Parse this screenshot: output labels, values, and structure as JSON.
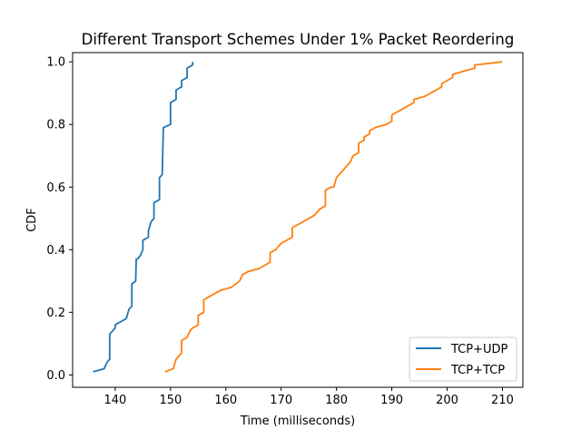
{
  "chart_data": {
    "type": "line",
    "title": "Different Transport Schemes Under 1% Packet Reordering",
    "xlabel": "Time (milliseconds)",
    "ylabel": "CDF",
    "xlim": [
      132.3,
      213.7
    ],
    "ylim": [
      -0.0395,
      1.0295
    ],
    "xticks": [
      140,
      150,
      160,
      170,
      180,
      190,
      200,
      210
    ],
    "yticks": [
      0.0,
      0.2,
      0.4,
      0.6,
      0.8,
      1.0
    ],
    "xtick_labels": [
      "140",
      "150",
      "160",
      "170",
      "180",
      "190",
      "200",
      "210"
    ],
    "ytick_labels": [
      "0.0",
      "0.2",
      "0.4",
      "0.6",
      "0.8",
      "1.0"
    ],
    "grid": false,
    "legend_position": "lower-right",
    "series": [
      {
        "name": "TCP+UDP",
        "color": "#1f77b4",
        "points": [
          [
            136.0,
            0.01
          ],
          [
            138.0,
            0.02
          ],
          [
            138.5,
            0.04
          ],
          [
            139.0,
            0.05
          ],
          [
            139.0,
            0.13
          ],
          [
            139.5,
            0.14
          ],
          [
            140.0,
            0.15
          ],
          [
            140.0,
            0.16
          ],
          [
            141.0,
            0.17
          ],
          [
            142.0,
            0.18
          ],
          [
            142.5,
            0.21
          ],
          [
            143.0,
            0.22
          ],
          [
            143.0,
            0.29
          ],
          [
            143.7,
            0.3
          ],
          [
            143.8,
            0.37
          ],
          [
            144.0,
            0.37
          ],
          [
            144.5,
            0.38
          ],
          [
            145.0,
            0.4
          ],
          [
            145.0,
            0.43
          ],
          [
            146.0,
            0.44
          ],
          [
            146.0,
            0.46
          ],
          [
            146.5,
            0.49
          ],
          [
            147.0,
            0.5
          ],
          [
            147.0,
            0.55
          ],
          [
            148.0,
            0.56
          ],
          [
            148.0,
            0.63
          ],
          [
            148.5,
            0.64
          ],
          [
            148.7,
            0.79
          ],
          [
            150.0,
            0.8
          ],
          [
            150.0,
            0.87
          ],
          [
            151.0,
            0.88
          ],
          [
            151.0,
            0.91
          ],
          [
            152.0,
            0.92
          ],
          [
            152.0,
            0.94
          ],
          [
            153.0,
            0.95
          ],
          [
            153.0,
            0.98
          ],
          [
            154.0,
            0.99
          ],
          [
            154.0,
            1.0
          ]
        ]
      },
      {
        "name": "TCP+TCP",
        "color": "#ff7f0e",
        "points": [
          [
            149.0,
            0.01
          ],
          [
            150.5,
            0.02
          ],
          [
            151.0,
            0.05
          ],
          [
            151.5,
            0.06
          ],
          [
            152.0,
            0.07
          ],
          [
            152.0,
            0.11
          ],
          [
            153.0,
            0.12
          ],
          [
            153.5,
            0.14
          ],
          [
            154.0,
            0.15
          ],
          [
            155.0,
            0.16
          ],
          [
            155.0,
            0.19
          ],
          [
            156.0,
            0.2
          ],
          [
            156.0,
            0.24
          ],
          [
            157.0,
            0.25
          ],
          [
            159.0,
            0.27
          ],
          [
            161.0,
            0.28
          ],
          [
            162.5,
            0.3
          ],
          [
            163.0,
            0.32
          ],
          [
            164.0,
            0.33
          ],
          [
            166.0,
            0.34
          ],
          [
            168.0,
            0.36
          ],
          [
            168.0,
            0.39
          ],
          [
            169.0,
            0.4
          ],
          [
            170.0,
            0.42
          ],
          [
            171.0,
            0.43
          ],
          [
            172.0,
            0.44
          ],
          [
            172.0,
            0.47
          ],
          [
            174.0,
            0.49
          ],
          [
            176.0,
            0.51
          ],
          [
            176.5,
            0.52
          ],
          [
            177.0,
            0.53
          ],
          [
            178.0,
            0.54
          ],
          [
            178.0,
            0.59
          ],
          [
            179.0,
            0.6
          ],
          [
            179.5,
            0.6
          ],
          [
            180.0,
            0.63
          ],
          [
            180.5,
            0.64
          ],
          [
            181.0,
            0.65
          ],
          [
            182.0,
            0.67
          ],
          [
            182.5,
            0.68
          ],
          [
            183.0,
            0.7
          ],
          [
            184.0,
            0.71
          ],
          [
            184.0,
            0.74
          ],
          [
            185.0,
            0.75
          ],
          [
            185.0,
            0.76
          ],
          [
            186.0,
            0.77
          ],
          [
            186.0,
            0.78
          ],
          [
            187.0,
            0.79
          ],
          [
            189.0,
            0.8
          ],
          [
            190.0,
            0.81
          ],
          [
            190.0,
            0.83
          ],
          [
            192.0,
            0.85
          ],
          [
            194.0,
            0.87
          ],
          [
            194.0,
            0.88
          ],
          [
            196.0,
            0.89
          ],
          [
            199.0,
            0.92
          ],
          [
            199.0,
            0.93
          ],
          [
            200.0,
            0.94
          ],
          [
            201.0,
            0.95
          ],
          [
            201.0,
            0.96
          ],
          [
            205.0,
            0.98
          ],
          [
            205.0,
            0.99
          ],
          [
            210.0,
            1.0
          ]
        ]
      }
    ]
  }
}
